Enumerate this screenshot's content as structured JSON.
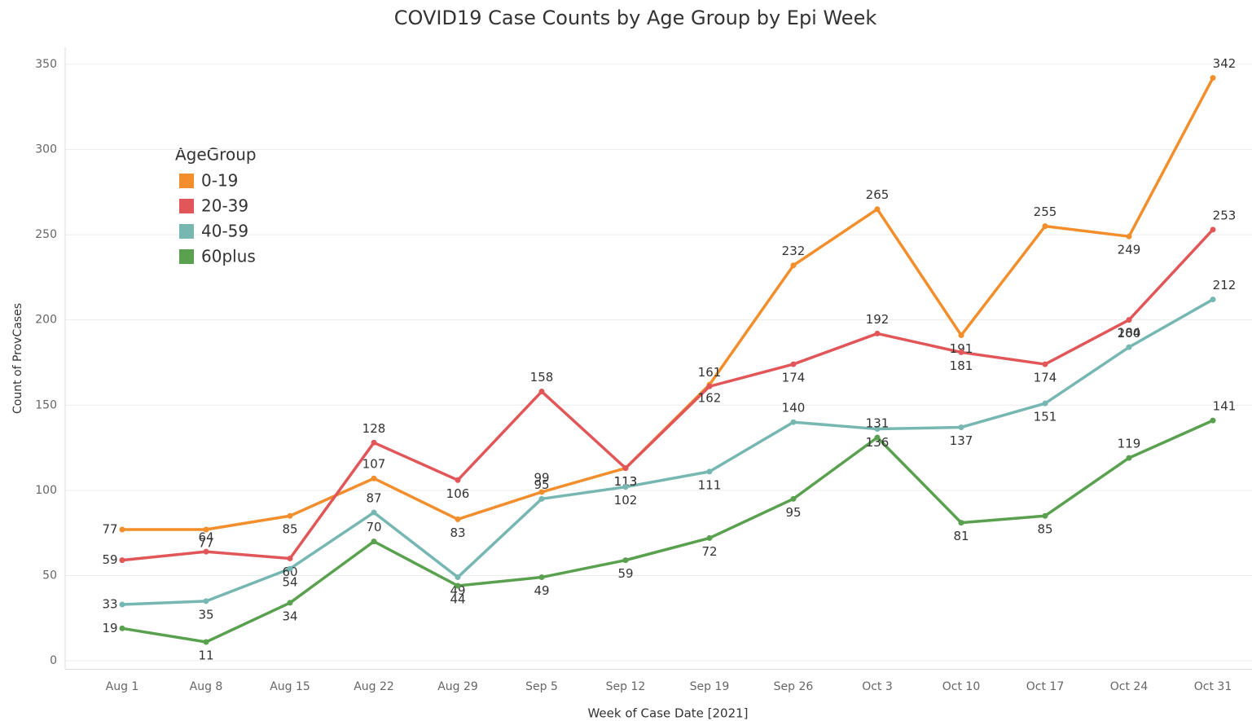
{
  "chart_data": {
    "type": "line",
    "title": "COVID19 Case Counts by Age Group by Epi Week",
    "x_label": "Week of Case Date [2021]",
    "y_label": "Count of ProvCases",
    "legend_title": "AgeGroup",
    "legend_position": "upper left",
    "grid": true,
    "categories": [
      "Aug 1",
      "Aug 8",
      "Aug 15",
      "Aug 22",
      "Aug 29",
      "Sep 5",
      "Sep 12",
      "Sep 19",
      "Sep 26",
      "Oct 3",
      "Oct 10",
      "Oct 17",
      "Oct 24",
      "Oct 31"
    ],
    "ylim": [
      -5,
      360
    ],
    "yticks": [
      0,
      50,
      100,
      150,
      200,
      250,
      300,
      350
    ],
    "series": [
      {
        "name": "0-19",
        "color": "#f28e2b",
        "values": [
          77,
          77,
          85,
          107,
          83,
          99,
          113,
          162,
          232,
          265,
          191,
          255,
          249,
          342
        ]
      },
      {
        "name": "20-39",
        "color": "#e15759",
        "values": [
          59,
          64,
          60,
          128,
          106,
          158,
          113,
          161,
          174,
          192,
          181,
          174,
          200,
          253
        ]
      },
      {
        "name": "40-59",
        "color": "#76b7b2",
        "values": [
          33,
          35,
          54,
          87,
          49,
          95,
          102,
          111,
          140,
          136,
          137,
          151,
          184,
          212
        ]
      },
      {
        "name": "60plus",
        "color": "#59a14f",
        "values": [
          19,
          11,
          34,
          70,
          44,
          49,
          59,
          72,
          95,
          131,
          81,
          85,
          119,
          141
        ]
      }
    ]
  }
}
